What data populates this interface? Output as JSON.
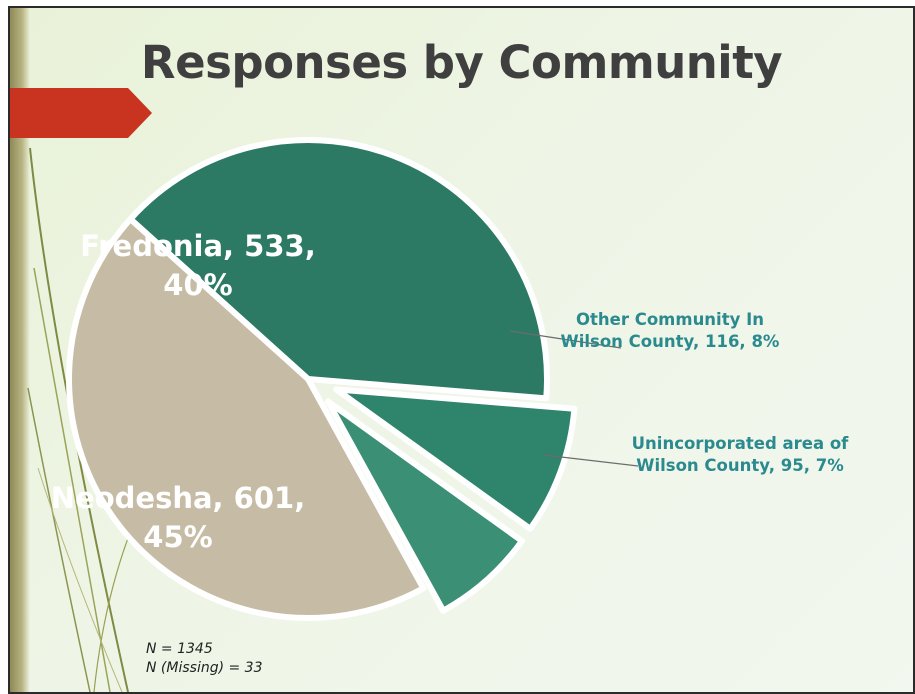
{
  "slide": {
    "title": "Responses by Community",
    "notes": [
      "N = 1345",
      "N (Missing) = 33"
    ]
  },
  "colors": {
    "fredonia": "#2c7a64",
    "other_community": "#2e856b",
    "unincorporated": "#3a8f74",
    "neodesha": "#c6bca6",
    "callout_text": "#2a8a8e",
    "callout_line": "#6c6c6c",
    "accent_arrow": "#c8341f"
  },
  "chart_data": {
    "type": "pie",
    "title": "",
    "slices": [
      {
        "name": "Fredonia",
        "value": 533,
        "percent": 40,
        "label_lines": [
          "Fredonia, 533,",
          "40%"
        ]
      },
      {
        "name": "Other Community In Wilson County",
        "value": 116,
        "percent": 8,
        "label_lines": [
          "Other Community In",
          "Wilson County, 116, 8%"
        ]
      },
      {
        "name": "Unincorporated area of Wilson County",
        "value": 95,
        "percent": 7,
        "label_lines": [
          "Unincorporated area of",
          "Wilson County, 95, 7%"
        ]
      },
      {
        "name": "Neodesha",
        "value": 601,
        "percent": 45,
        "label_lines": [
          "Neodesha, 601,",
          "45%"
        ]
      }
    ]
  }
}
